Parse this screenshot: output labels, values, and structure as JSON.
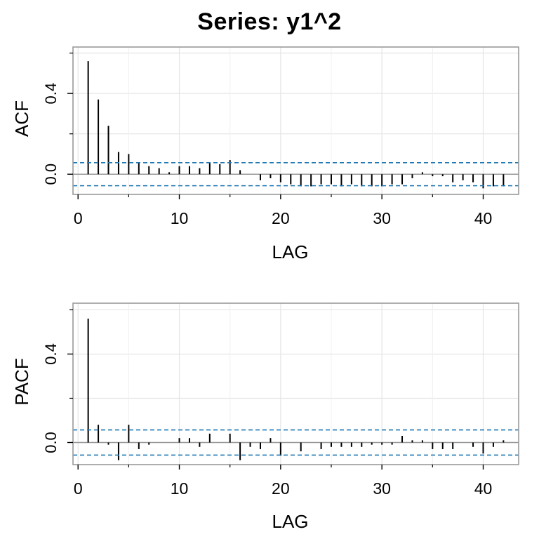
{
  "title": "Series:  y1^2",
  "colors": {
    "grid": "#e5e5e5",
    "frame": "#999999",
    "zero_line": "#999999",
    "bars": "#000000",
    "bounds": "#1f78b4",
    "text": "#000000"
  },
  "chart_data": [
    {
      "type": "bar",
      "ylabel": "ACF",
      "xlabel": "LAG",
      "xlim": [
        -0.5,
        43.5
      ],
      "ylim": [
        -0.1,
        0.63
      ],
      "xticks": [
        0,
        10,
        20,
        30,
        40
      ],
      "yticks": [
        0.0,
        0.4
      ],
      "yticks_minor": [
        0.2,
        0.6
      ],
      "grid": true,
      "confidence_bound": 0.057,
      "lags": [
        1,
        2,
        3,
        4,
        5,
        6,
        7,
        8,
        9,
        10,
        11,
        12,
        13,
        14,
        15,
        16,
        17,
        18,
        19,
        20,
        21,
        22,
        23,
        24,
        25,
        26,
        27,
        28,
        29,
        30,
        31,
        32,
        33,
        34,
        35,
        36,
        37,
        38,
        39,
        40,
        41,
        42
      ],
      "values": [
        0.56,
        0.37,
        0.24,
        0.11,
        0.1,
        0.06,
        0.04,
        0.03,
        0.01,
        0.04,
        0.04,
        0.03,
        0.06,
        0.05,
        0.07,
        0.02,
        0.0,
        -0.03,
        -0.02,
        -0.04,
        -0.05,
        -0.06,
        -0.06,
        -0.05,
        -0.05,
        -0.06,
        -0.05,
        -0.06,
        -0.06,
        -0.06,
        -0.05,
        -0.05,
        -0.02,
        0.01,
        -0.01,
        -0.01,
        -0.04,
        -0.03,
        -0.04,
        -0.07,
        -0.06,
        -0.06
      ]
    },
    {
      "type": "bar",
      "ylabel": "PACF",
      "xlabel": "LAG",
      "xlim": [
        -0.5,
        43.5
      ],
      "ylim": [
        -0.1,
        0.63
      ],
      "xticks": [
        0,
        10,
        20,
        30,
        40
      ],
      "yticks": [
        0.0,
        0.4
      ],
      "yticks_minor": [
        0.2,
        0.6
      ],
      "grid": true,
      "confidence_bound": 0.057,
      "lags": [
        1,
        2,
        3,
        4,
        5,
        6,
        7,
        8,
        9,
        10,
        11,
        12,
        13,
        14,
        15,
        16,
        17,
        18,
        19,
        20,
        21,
        22,
        23,
        24,
        25,
        26,
        27,
        28,
        29,
        30,
        31,
        32,
        33,
        34,
        35,
        36,
        37,
        38,
        39,
        40,
        41,
        42
      ],
      "values": [
        0.56,
        0.08,
        -0.01,
        -0.08,
        0.08,
        -0.03,
        -0.01,
        0.0,
        0.0,
        0.02,
        0.02,
        -0.02,
        0.04,
        0.0,
        0.04,
        -0.08,
        -0.02,
        -0.03,
        0.02,
        -0.06,
        0.0,
        -0.04,
        0.0,
        -0.03,
        -0.02,
        -0.02,
        -0.02,
        -0.02,
        -0.01,
        -0.01,
        -0.01,
        0.03,
        0.01,
        0.01,
        -0.03,
        -0.03,
        -0.03,
        0.0,
        -0.02,
        -0.05,
        -0.02,
        0.01
      ]
    }
  ]
}
